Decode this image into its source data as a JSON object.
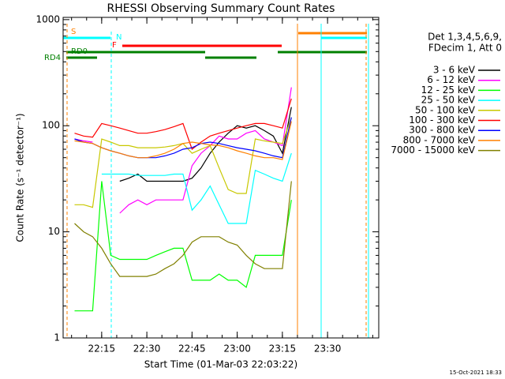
{
  "chart_data": {
    "type": "line",
    "title": "RHESSI Observing Summary Count Rates",
    "x_label": "Start Time (01-Mar-03 22:03:22)",
    "y_label": "Count Rate (s⁻¹ detector⁻¹)",
    "footer": "15-Oct-2021 18:33",
    "legend_title": [
      "Det 1,3,4,5,6,9,",
      "FDecim 1, Att 0"
    ],
    "flags": [
      "S",
      "N",
      "F",
      "RD0",
      "RD4"
    ],
    "log_y": true,
    "legend": "right",
    "xlim": [
      1322.2,
      1427
    ],
    "xticks": [
      {
        "value": 1335,
        "label": "22:15"
      },
      {
        "value": 1350,
        "label": "22:30"
      },
      {
        "value": 1365,
        "label": "22:45"
      },
      {
        "value": 1380,
        "label": "23:00"
      },
      {
        "value": 1395,
        "label": "23:15"
      },
      {
        "value": 1410,
        "label": "23:30"
      }
    ],
    "ylim": [
      1,
      1050
    ],
    "yticks": [
      1,
      10,
      100,
      1000
    ],
    "x": [
      1326,
      1329,
      1332,
      1335,
      1338,
      1341,
      1344,
      1347,
      1350,
      1353,
      1356,
      1359,
      1362,
      1365,
      1368,
      1371,
      1374,
      1377,
      1380,
      1383,
      1386,
      1389,
      1392,
      1395,
      1398
    ],
    "series": [
      {
        "name": "3 - 6 keV",
        "color": "#000000",
        "values": [
          null,
          null,
          null,
          null,
          null,
          30,
          32,
          35,
          30,
          30,
          30,
          30,
          30,
          32,
          40,
          55,
          70,
          85,
          100,
          95,
          100,
          90,
          80,
          55,
          150
        ]
      },
      {
        "name": "6 - 12 keV",
        "color": "#ff00ff",
        "values": [
          75,
          72,
          70,
          null,
          null,
          15,
          18,
          20,
          18,
          20,
          20,
          20,
          20,
          42,
          55,
          65,
          80,
          75,
          75,
          85,
          90,
          75,
          70,
          65,
          230
        ]
      },
      {
        "name": "12 - 25 keV",
        "color": "#00ff00",
        "values": [
          1.8,
          1.8,
          1.8,
          30,
          6,
          5.5,
          5.5,
          5.5,
          5.5,
          6,
          6.5,
          7,
          7,
          3.5,
          3.5,
          3.5,
          4,
          3.5,
          3.5,
          3,
          6,
          6,
          6,
          6,
          20
        ]
      },
      {
        "name": "25 - 50 keV",
        "color": "#00ffff",
        "values": [
          null,
          null,
          null,
          35,
          35,
          35,
          35,
          34,
          34,
          34,
          34,
          35,
          35,
          16,
          20,
          27,
          18,
          12,
          12,
          12,
          38,
          35,
          32,
          30,
          55
        ]
      },
      {
        "name": "50 - 100 keV",
        "color": "#c8c800",
        "values": [
          18,
          18,
          17,
          75,
          70,
          65,
          65,
          62,
          62,
          62,
          63,
          65,
          68,
          55,
          60,
          65,
          40,
          25,
          23,
          23,
          75,
          72,
          70,
          68,
          120
        ]
      },
      {
        "name": "100 - 300 keV",
        "color": "#ff0000",
        "values": [
          85,
          80,
          78,
          105,
          100,
          95,
          90,
          85,
          85,
          88,
          92,
          98,
          105,
          60,
          70,
          80,
          85,
          90,
          95,
          100,
          105,
          105,
          100,
          95,
          180
        ]
      },
      {
        "name": "300 - 800 keV",
        "color": "#0000ff",
        "values": [
          75,
          70,
          68,
          62,
          58,
          55,
          52,
          50,
          50,
          50,
          52,
          55,
          60,
          62,
          68,
          70,
          68,
          65,
          62,
          60,
          58,
          55,
          52,
          50,
          120
        ]
      },
      {
        "name": "800 - 7000 keV",
        "color": "#ff8000",
        "values": [
          72,
          70,
          68,
          62,
          58,
          55,
          52,
          50,
          50,
          52,
          55,
          60,
          68,
          70,
          68,
          66,
          65,
          62,
          58,
          55,
          52,
          50,
          50,
          48,
          110
        ]
      },
      {
        "name": "7000 - 15000 keV",
        "color": "#808000",
        "values": [
          12,
          10,
          9,
          7,
          5,
          3.8,
          3.8,
          3.8,
          3.8,
          4,
          4.5,
          5,
          6,
          8,
          9,
          9,
          9,
          8,
          7.5,
          6,
          5,
          4.5,
          4.5,
          4.5,
          30
        ]
      }
    ]
  }
}
